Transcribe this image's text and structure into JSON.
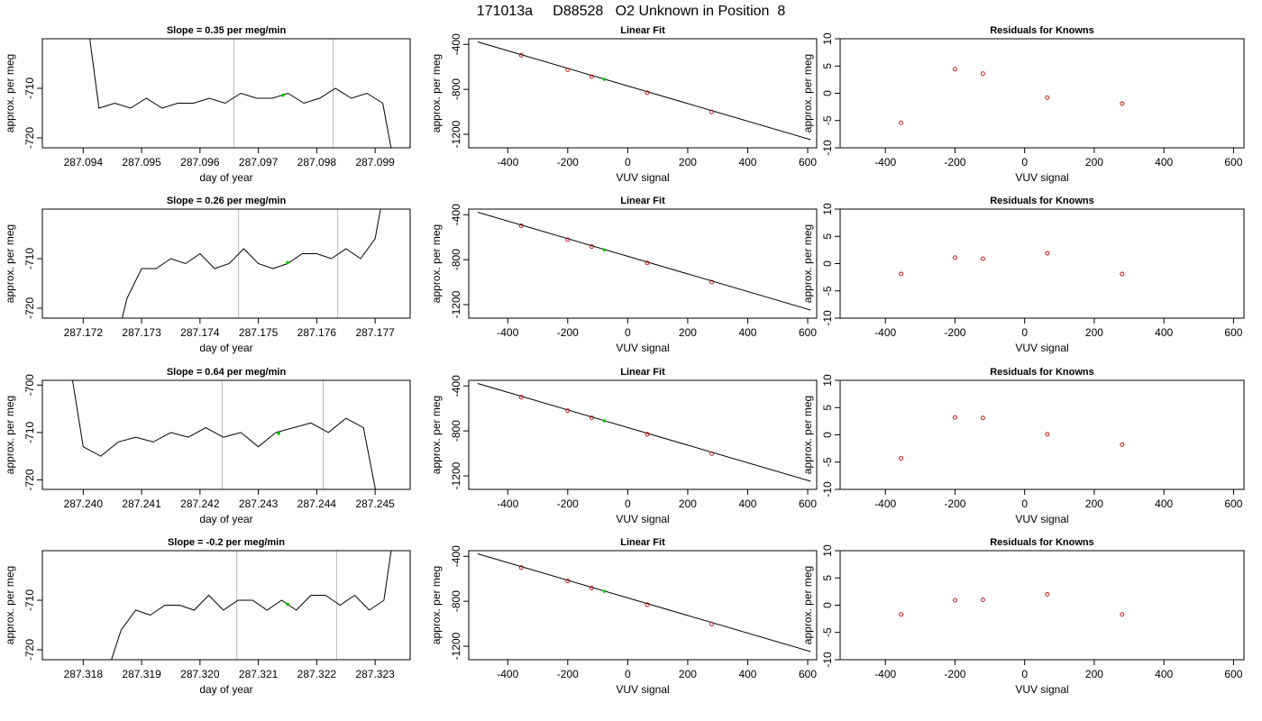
{
  "title": "171013a     D88528   O2 Unknown in Position  8",
  "colors": {
    "line": "#000000",
    "marker": "#cc0000",
    "unknown": "#00cc00",
    "vline": "#bbbbbb"
  },
  "chart_data": [
    {
      "type": "line",
      "title": "Slope =  0.35  per meg/min",
      "xlabel": "day of year",
      "ylabel": "approx. per meg",
      "xlim": [
        287.0933,
        287.0996
      ],
      "ylim": [
        -722,
        -700
      ],
      "xticks": [
        "287.094",
        "287.095",
        "287.096",
        "287.097",
        "287.098",
        "287.099"
      ],
      "yticks": [
        "-720",
        "-710"
      ],
      "vlines": [
        287.09658,
        287.09828
      ],
      "unknown_point": [
        287.09742,
        -711.4
      ],
      "series": [
        {
          "x": [
            287.094,
            287.09427,
            287.09454,
            287.09481,
            287.09508,
            287.09535,
            287.09562,
            287.09589,
            287.09616,
            287.09643,
            287.0967,
            287.09697,
            287.09724,
            287.09751,
            287.09778,
            287.09805,
            287.09832,
            287.09859,
            287.09886,
            287.09913,
            287.0994
          ],
          "y": [
            -690,
            -714,
            -713,
            -714,
            -712,
            -714,
            -713,
            -713,
            -712,
            -713,
            -711,
            -712,
            -712,
            -711,
            -713,
            -712,
            -710,
            -712,
            -711,
            -713,
            -730
          ]
        }
      ]
    },
    {
      "type": "scatter",
      "title": "Linear Fit",
      "xlabel": "VUV signal",
      "ylabel": "approx. per meg",
      "xlim": [
        -530,
        630
      ],
      "ylim": [
        -1320,
        -350
      ],
      "xticks": [
        "-400",
        "-200",
        "0",
        "200",
        "400",
        "600"
      ],
      "yticks": [
        "-400",
        "-800",
        "-1200"
      ],
      "fit_line": {
        "x": [
          -500,
          610
        ],
        "y": [
          -378,
          -1248
        ]
      },
      "knowns": {
        "x": [
          -355,
          -200,
          -120,
          65,
          280
        ],
        "y": [
          -496,
          -626,
          -687,
          -830,
          -1001
        ]
      },
      "unknown": {
        "x": [
          -78
        ],
        "y": [
          -711
        ]
      }
    },
    {
      "type": "scatter",
      "title": "Residuals for Knowns",
      "xlabel": "VUV signal",
      "ylabel": "approx. per meg",
      "xlim": [
        -530,
        630
      ],
      "ylim": [
        -10,
        10
      ],
      "xticks": [
        "-400",
        "-200",
        "0",
        "200",
        "400",
        "600"
      ],
      "yticks": [
        "-10",
        "-5",
        "0",
        "5",
        "10"
      ],
      "x": [
        -355,
        -200,
        -120,
        65,
        280
      ],
      "y": [
        -5.4,
        4.4,
        3.6,
        -0.8,
        -1.9
      ]
    },
    {
      "type": "line",
      "title": "Slope =  0.26  per meg/min",
      "xlabel": "day of year",
      "ylabel": "approx. per meg",
      "xlim": [
        287.1713,
        287.1776
      ],
      "ylim": [
        -722,
        -700
      ],
      "xticks": [
        "287.172",
        "287.173",
        "287.174",
        "287.175",
        "287.176",
        "287.177"
      ],
      "yticks": [
        "-720",
        "-710"
      ],
      "vlines": [
        287.17466,
        287.17636
      ],
      "unknown_point": [
        287.1755,
        -710.8
      ],
      "series": [
        {
          "x": [
            287.1725,
            287.17275,
            287.173,
            287.17325,
            287.1735,
            287.17375,
            287.174,
            287.17425,
            287.1745,
            287.17475,
            287.175,
            287.17525,
            287.1755,
            287.17575,
            287.176,
            287.17625,
            287.1765,
            287.17675,
            287.177,
            287.17725
          ],
          "y": [
            -730,
            -718,
            -712,
            -712,
            -710,
            -711,
            -709,
            -712,
            -711,
            -708,
            -711,
            -712,
            -711,
            -709,
            -709,
            -710,
            -708,
            -710,
            -706,
            -690
          ]
        }
      ]
    },
    {
      "type": "scatter",
      "title": "Linear Fit",
      "xlabel": "VUV signal",
      "ylabel": "approx. per meg",
      "xlim": [
        -530,
        630
      ],
      "ylim": [
        -1320,
        -350
      ],
      "xticks": [
        "-400",
        "-200",
        "0",
        "200",
        "400",
        "600"
      ],
      "yticks": [
        "-400",
        "-800",
        "-1200"
      ],
      "fit_line": {
        "x": [
          -500,
          610
        ],
        "y": [
          -378,
          -1248
        ]
      },
      "knowns": {
        "x": [
          -355,
          -200,
          -120,
          65,
          280
        ],
        "y": [
          -498,
          -622,
          -683,
          -829,
          -999
        ]
      },
      "unknown": {
        "x": [
          -78
        ],
        "y": [
          -713
        ]
      }
    },
    {
      "type": "scatter",
      "title": "Residuals for Knowns",
      "xlabel": "VUV signal",
      "ylabel": "approx. per meg",
      "xlim": [
        -530,
        630
      ],
      "ylim": [
        -10,
        10
      ],
      "xticks": [
        "-400",
        "-200",
        "0",
        "200",
        "400",
        "600"
      ],
      "yticks": [
        "-10",
        "-5",
        "0",
        "5",
        "10"
      ],
      "x": [
        -355,
        -200,
        -120,
        65,
        280
      ],
      "y": [
        -1.9,
        1.1,
        0.9,
        1.9,
        -1.9
      ]
    },
    {
      "type": "line",
      "title": "Slope =  0.64  per meg/min",
      "xlabel": "day of year",
      "ylabel": "approx. per meg",
      "xlim": [
        287.2393,
        287.2456
      ],
      "ylim": [
        -722,
        -699
      ],
      "xticks": [
        "287.240",
        "287.241",
        "287.242",
        "287.243",
        "287.244",
        "287.245"
      ],
      "yticks": [
        "-720",
        "-710",
        "-700"
      ],
      "vlines": [
        287.24238,
        287.24411
      ],
      "unknown_point": [
        287.24335,
        -710.2
      ],
      "series": [
        {
          "x": [
            287.2397,
            287.24,
            287.2403,
            287.2406,
            287.2409,
            287.2412,
            287.2415,
            287.2418,
            287.2421,
            287.2424,
            287.2427,
            287.243,
            287.2433,
            287.2436,
            287.2439,
            287.2442,
            287.2445,
            287.2448,
            287.2451
          ],
          "y": [
            -690,
            -713,
            -715,
            -712,
            -711,
            -712,
            -710,
            -711,
            -709,
            -711,
            -710,
            -713,
            -710,
            -709,
            -708,
            -710,
            -707,
            -709,
            -728
          ]
        }
      ]
    },
    {
      "type": "scatter",
      "title": "Linear Fit",
      "xlabel": "VUV signal",
      "ylabel": "approx. per meg",
      "xlim": [
        -530,
        630
      ],
      "ylim": [
        -1320,
        -350
      ],
      "xticks": [
        "-400",
        "-200",
        "0",
        "200",
        "400",
        "600"
      ],
      "yticks": [
        "-400",
        "-800",
        "-1200"
      ],
      "fit_line": {
        "x": [
          -500,
          610
        ],
        "y": [
          -378,
          -1248
        ]
      },
      "knowns": {
        "x": [
          -355,
          -200,
          -120,
          65,
          280
        ],
        "y": [
          -500,
          -620,
          -683,
          -830,
          -1002
        ]
      },
      "unknown": {
        "x": [
          -78
        ],
        "y": [
          -710
        ]
      }
    },
    {
      "type": "scatter",
      "title": "Residuals for Knowns",
      "xlabel": "VUV signal",
      "ylabel": "approx. per meg",
      "xlim": [
        -530,
        630
      ],
      "ylim": [
        -10,
        10
      ],
      "xticks": [
        "-400",
        "-200",
        "0",
        "200",
        "400",
        "600"
      ],
      "yticks": [
        "-10",
        "-5",
        "0",
        "5",
        "10"
      ],
      "x": [
        -355,
        -200,
        -120,
        65,
        280
      ],
      "y": [
        -4.3,
        3.2,
        3.1,
        0.1,
        -1.8
      ]
    },
    {
      "type": "line",
      "title": "Slope =  -0.2  per meg/min",
      "xlabel": "day of year",
      "ylabel": "approx. per meg",
      "xlim": [
        287.3173,
        287.3236
      ],
      "ylim": [
        -722,
        -700
      ],
      "xticks": [
        "287.318",
        "287.319",
        "287.320",
        "287.321",
        "287.322",
        "287.323"
      ],
      "yticks": [
        "-720",
        "-710"
      ],
      "vlines": [
        287.32063,
        287.32234
      ],
      "unknown_point": [
        287.3215,
        -710.8
      ],
      "series": [
        {
          "x": [
            287.3184,
            287.31865,
            287.3189,
            287.31915,
            287.3194,
            287.31965,
            287.3199,
            287.32015,
            287.3204,
            287.32065,
            287.3209,
            287.32115,
            287.3214,
            287.32165,
            287.3219,
            287.32215,
            287.3224,
            287.32265,
            287.3229,
            287.32315,
            287.3234
          ],
          "y": [
            -725,
            -716,
            -712,
            -713,
            -711,
            -711,
            -712,
            -709,
            -712,
            -710,
            -710,
            -712,
            -710,
            -712,
            -709,
            -709,
            -711,
            -709,
            -712,
            -710,
            -690
          ]
        }
      ]
    },
    {
      "type": "scatter",
      "title": "Linear Fit",
      "xlabel": "VUV signal",
      "ylabel": "approx. per meg",
      "xlim": [
        -530,
        630
      ],
      "ylim": [
        -1320,
        -350
      ],
      "xticks": [
        "-400",
        "-200",
        "0",
        "200",
        "400",
        "600"
      ],
      "yticks": [
        "-400",
        "-800",
        "-1200"
      ],
      "fit_line": {
        "x": [
          -500,
          610
        ],
        "y": [
          -378,
          -1248
        ]
      },
      "knowns": {
        "x": [
          -355,
          -200,
          -120,
          65,
          280
        ],
        "y": [
          -500,
          -620,
          -683,
          -830,
          -1002
        ]
      },
      "unknown": {
        "x": [
          -78
        ],
        "y": [
          -712
        ]
      }
    },
    {
      "type": "scatter",
      "title": "Residuals for Knowns",
      "xlabel": "VUV signal",
      "ylabel": "approx. per meg",
      "xlim": [
        -530,
        630
      ],
      "ylim": [
        -10,
        10
      ],
      "xticks": [
        "-400",
        "-200",
        "0",
        "200",
        "400",
        "600"
      ],
      "yticks": [
        "-10",
        "-5",
        "0",
        "5",
        "10"
      ],
      "x": [
        -355,
        -200,
        -120,
        65,
        280
      ],
      "y": [
        -1.7,
        0.9,
        1.0,
        2.0,
        -1.7
      ]
    }
  ]
}
